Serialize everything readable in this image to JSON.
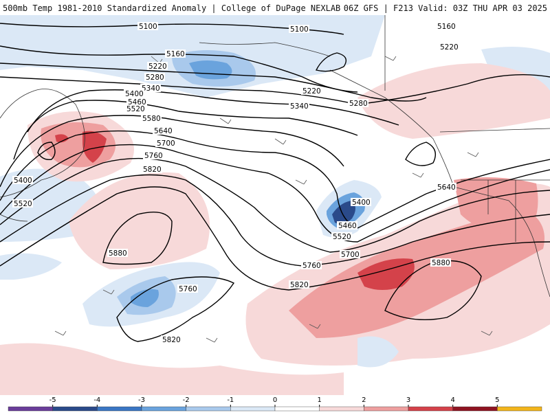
{
  "header": {
    "left_title": "500mb Temp 1981-2010 Standardized Anomaly | College of DuPage NEXLAB",
    "right_title": "06Z GFS | F213 Valid: 03Z THU APR 03 2025"
  },
  "contour_labels": [
    "5100",
    "5100",
    "5160",
    "5160",
    "5220",
    "5220",
    "5280",
    "5340",
    "5220",
    "5280",
    "5400",
    "5460",
    "5520",
    "5340",
    "5580",
    "5640",
    "5700",
    "5760",
    "5820",
    "5400",
    "5520",
    "5880",
    "5400",
    "5460",
    "5520",
    "5640",
    "5880",
    "5700",
    "5760",
    "5760",
    "5820",
    "5820"
  ],
  "colorbar": {
    "ticks": [
      "-5",
      "-4",
      "-3",
      "-2",
      "-1",
      "0",
      "1",
      "2",
      "3",
      "4",
      "5"
    ],
    "colors": [
      "#6a3d9a",
      "#2a4a8a",
      "#3a76c4",
      "#6aa3dd",
      "#a9c9ec",
      "#dbe8f6",
      "#ffffff",
      "#f7d9d9",
      "#ee9f9f",
      "#d4424a",
      "#8f1422",
      "#f2b51c"
    ]
  },
  "icons": {
    "wind_barbs": "wind-barb-icon"
  }
}
